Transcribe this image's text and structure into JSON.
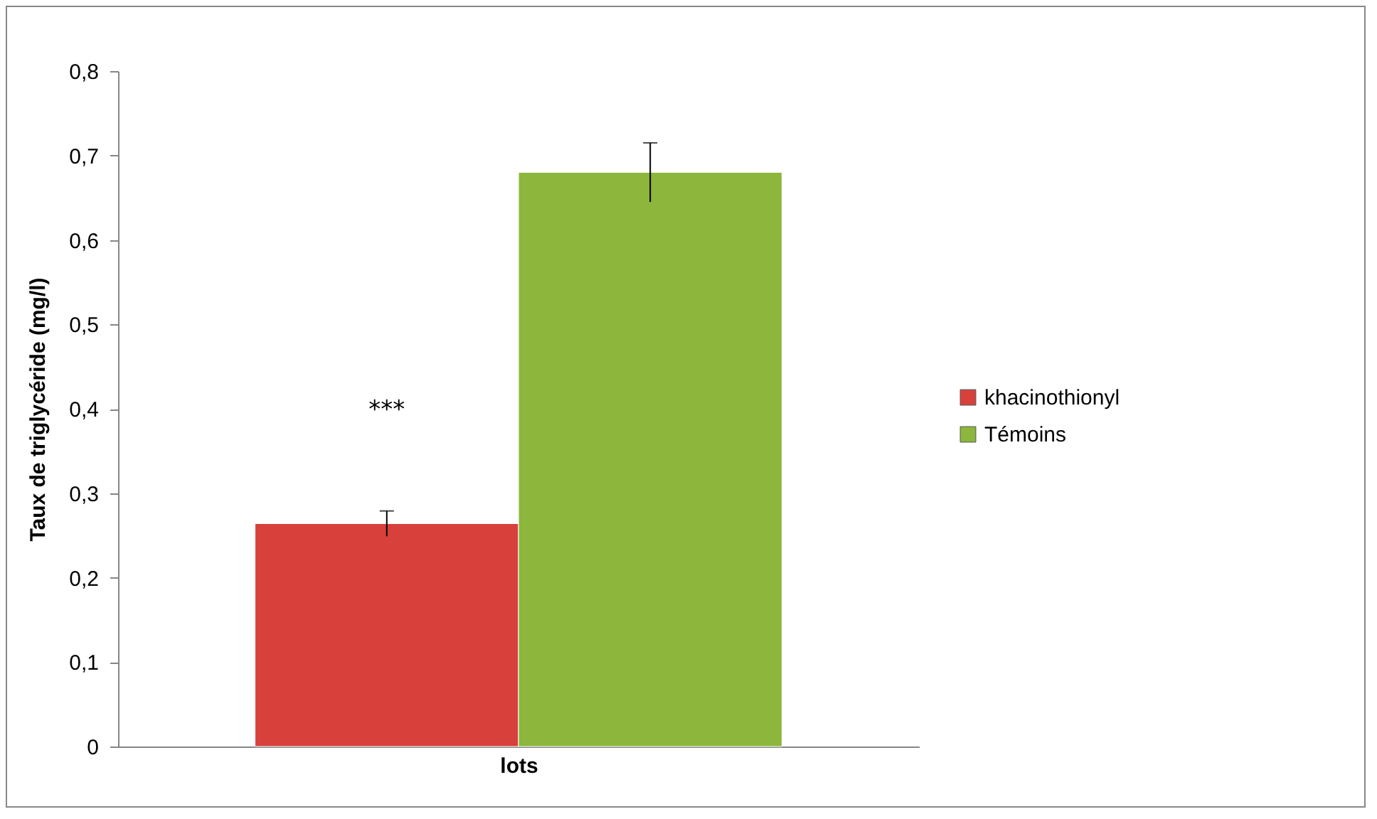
{
  "chart_data": {
    "type": "bar",
    "xlabel": "lots",
    "ylabel": "Taux de triglycéride (mg/l)",
    "categories": [
      null
    ],
    "series": [
      {
        "name": "khacinothionyl",
        "color": "#d8403c",
        "values": [
          0.264
        ],
        "errors": [
          0.015
        ]
      },
      {
        "name": "Témoins",
        "color": "#8cb63c",
        "values": [
          0.68
        ],
        "errors": [
          0.035
        ]
      }
    ],
    "ylim": [
      0,
      0.8
    ],
    "yticks": [
      0,
      {
        "value": 0.1,
        "label": "0,1"
      },
      {
        "value": 0.2,
        "label": "0,2"
      },
      {
        "value": 0.3,
        "label": "0,3"
      },
      {
        "value": 0.4,
        "label": "0,4"
      },
      {
        "value": 0.5,
        "label": "0,5"
      },
      {
        "value": 0.6,
        "label": "0,6"
      },
      {
        "value": 0.7,
        "label": "0,7"
      },
      {
        "value": 0.8,
        "label": "0,8"
      }
    ],
    "annotations": [
      "***"
    ],
    "grid": false,
    "legend": "right"
  }
}
